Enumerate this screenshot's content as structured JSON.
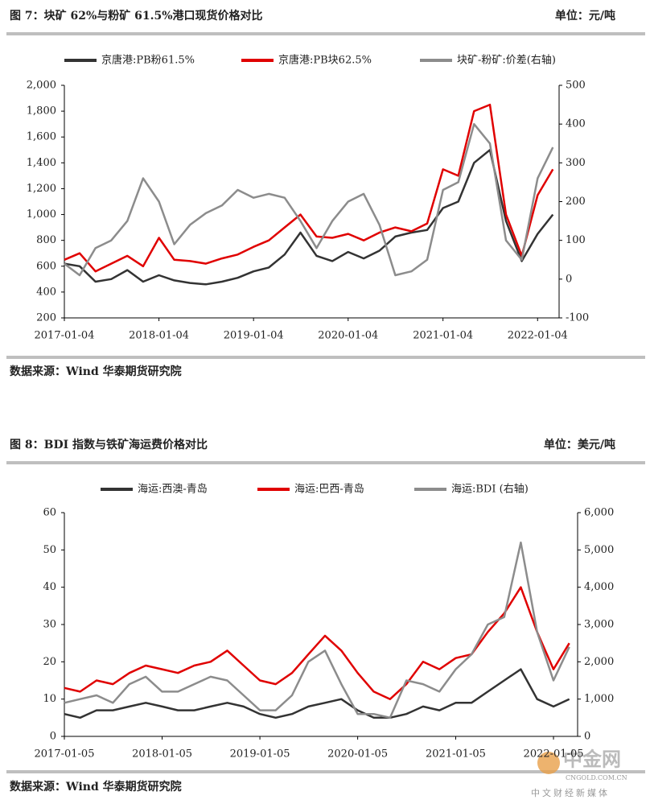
{
  "chart_data": [
    {
      "type": "line",
      "title": "图 7：块矿 62%与粉矿 61.5%港口现货价格对比",
      "unit": "单位：元/吨",
      "source": "数据来源：Wind  华泰期货研究院",
      "x": [
        "2017-01-04",
        "2017-03-04",
        "2017-05-04",
        "2017-07-04",
        "2017-09-04",
        "2017-11-04",
        "2018-01-04",
        "2018-03-04",
        "2018-05-04",
        "2018-07-04",
        "2018-09-04",
        "2018-11-04",
        "2019-01-04",
        "2019-03-04",
        "2019-05-04",
        "2019-07-04",
        "2019-09-04",
        "2019-11-04",
        "2020-01-04",
        "2020-03-04",
        "2020-05-04",
        "2020-07-04",
        "2020-09-04",
        "2020-11-04",
        "2021-01-04",
        "2021-03-04",
        "2021-05-04",
        "2021-07-04",
        "2021-09-04",
        "2021-11-04",
        "2022-01-04",
        "2022-03-04"
      ],
      "xlim": [
        "2017-01-04",
        "2022-03-28"
      ],
      "xticks": [
        "2017-01-04",
        "2018-01-04",
        "2019-01-04",
        "2020-01-04",
        "2021-01-04",
        "2022-01-04"
      ],
      "ylim": [
        200,
        2000
      ],
      "yticks": [
        200,
        400,
        600,
        800,
        {
          "value": 1000,
          "label": "1,000"
        },
        {
          "value": 1200,
          "label": "1,200"
        },
        {
          "value": 1400,
          "label": "1,400"
        },
        {
          "value": 1600,
          "label": "1,600"
        },
        {
          "value": 1800,
          "label": "1,800"
        },
        {
          "value": 2000,
          "label": "2,000"
        }
      ],
      "y2lim": [
        -100,
        500
      ],
      "y2ticks": [
        -100,
        0,
        100,
        200,
        300,
        400,
        500
      ],
      "series": [
        {
          "name": "京唐港:PB粉61.5%",
          "color": "#333333",
          "values": [
            620,
            600,
            480,
            500,
            570,
            480,
            530,
            490,
            470,
            460,
            480,
            510,
            560,
            590,
            690,
            860,
            680,
            640,
            710,
            660,
            720,
            830,
            860,
            880,
            1050,
            1100,
            1400,
            1500,
            950,
            640,
            850,
            1000
          ]
        },
        {
          "name": "京唐港:PB块62.5%",
          "color": "#e00000",
          "values": [
            650,
            700,
            560,
            620,
            680,
            600,
            820,
            650,
            640,
            620,
            660,
            690,
            750,
            800,
            900,
            1000,
            830,
            820,
            850,
            800,
            860,
            900,
            870,
            930,
            1350,
            1300,
            1800,
            1850,
            1000,
            680,
            1150,
            1350
          ]
        },
        {
          "name": "块矿-粉矿:价差(右轴)",
          "color": "#8c8c8c",
          "axis": "y2",
          "values": [
            40,
            10,
            80,
            100,
            150,
            260,
            200,
            90,
            140,
            170,
            190,
            230,
            210,
            220,
            210,
            150,
            80,
            150,
            200,
            220,
            140,
            10,
            20,
            50,
            230,
            250,
            400,
            350,
            100,
            50,
            260,
            340
          ]
        }
      ]
    },
    {
      "type": "line",
      "title": "图 8：BDI 指数与铁矿海运费价格对比",
      "unit": "单位：美元/吨",
      "source": "数据来源：Wind  华泰期货研究院",
      "x": [
        "2017-01-05",
        "2017-03-05",
        "2017-05-05",
        "2017-07-05",
        "2017-09-05",
        "2017-11-05",
        "2018-01-05",
        "2018-03-05",
        "2018-05-05",
        "2018-07-05",
        "2018-09-05",
        "2018-11-05",
        "2019-01-05",
        "2019-03-05",
        "2019-05-05",
        "2019-07-05",
        "2019-09-05",
        "2019-11-05",
        "2020-01-05",
        "2020-03-05",
        "2020-05-05",
        "2020-07-05",
        "2020-09-05",
        "2020-11-05",
        "2021-01-05",
        "2021-03-05",
        "2021-05-05",
        "2021-07-05",
        "2021-09-05",
        "2021-11-05",
        "2022-01-05",
        "2022-03-05"
      ],
      "xlim": [
        "2017-01-05",
        "2022-04-05"
      ],
      "xticks": [
        "2017-01-05",
        "2018-01-05",
        "2019-01-05",
        "2020-01-05",
        "2021-01-05",
        "2022-01-05"
      ],
      "ylim": [
        0,
        60
      ],
      "yticks": [
        0,
        10,
        20,
        30,
        40,
        50,
        60
      ],
      "y2lim": [
        0,
        6000
      ],
      "y2ticks": [
        0,
        {
          "value": 1000,
          "label": "1,000"
        },
        {
          "value": 2000,
          "label": "2,000"
        },
        {
          "value": 3000,
          "label": "3,000"
        },
        {
          "value": 4000,
          "label": "4,000"
        },
        {
          "value": 5000,
          "label": "5,000"
        },
        {
          "value": 6000,
          "label": "6,000"
        }
      ],
      "series": [
        {
          "name": "海运:西澳-青岛",
          "color": "#333333",
          "values": [
            6,
            5,
            7,
            7,
            8,
            9,
            8,
            7,
            7,
            8,
            9,
            8,
            6,
            5,
            6,
            8,
            9,
            10,
            7,
            5,
            5,
            6,
            8,
            7,
            9,
            9,
            12,
            15,
            18,
            10,
            8,
            10
          ]
        },
        {
          "name": "海运:巴西-青岛",
          "color": "#e00000",
          "values": [
            13,
            12,
            15,
            14,
            17,
            19,
            18,
            17,
            19,
            20,
            23,
            19,
            15,
            14,
            17,
            22,
            27,
            23,
            17,
            12,
            10,
            14,
            20,
            18,
            21,
            22,
            28,
            33,
            40,
            28,
            18,
            25
          ]
        },
        {
          "name": "海运:BDI (右轴)",
          "color": "#8c8c8c",
          "axis": "y2",
          "values": [
            900,
            1000,
            1100,
            900,
            1400,
            1600,
            1200,
            1200,
            1400,
            1600,
            1500,
            1100,
            700,
            700,
            1100,
            2000,
            2300,
            1400,
            600,
            600,
            500,
            1500,
            1400,
            1200,
            1800,
            2200,
            3000,
            3200,
            5200,
            2800,
            1500,
            2400
          ]
        }
      ]
    }
  ],
  "watermark": {
    "logo": "中金网",
    "url": "CNGOLD.COM.CN",
    "tagline": "中文财经新媒体"
  }
}
